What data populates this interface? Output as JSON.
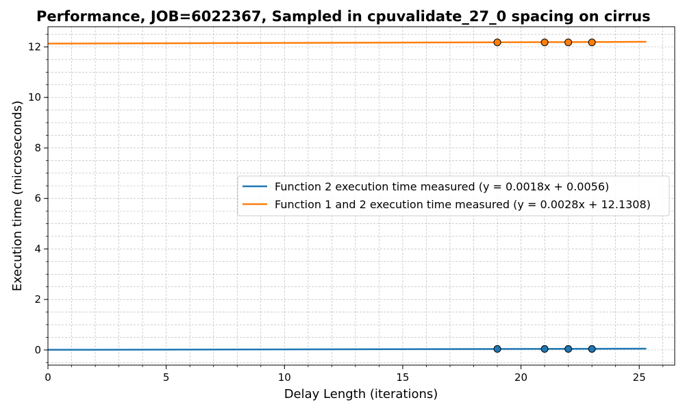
{
  "chart_data": {
    "type": "scatter",
    "title": "Performance, JOB=6022367, Sampled in cpuvalidate_27_0 spacing on cirrus",
    "xlabel": "Delay Length (iterations)",
    "ylabel": "Execution time (microseconds)",
    "xlim": [
      0,
      26.5
    ],
    "ylim": [
      -0.6,
      12.8
    ],
    "x_ticks": [
      0,
      5,
      10,
      15,
      20,
      25
    ],
    "y_ticks": [
      0,
      2,
      4,
      6,
      8,
      10,
      12
    ],
    "grid": true,
    "legend_position": "center-right",
    "series": [
      {
        "name": "Function 2 execution time measured (y = 0.0018x + 0.0056)",
        "color": "#1f77b4",
        "fit": {
          "slope": 0.0018,
          "intercept": 0.0056,
          "x_range": [
            0,
            25.3
          ]
        },
        "points": {
          "x": [
            19,
            21,
            22,
            23
          ],
          "y": [
            0.04,
            0.04,
            0.04,
            0.04
          ]
        }
      },
      {
        "name": "Function 1 and 2 execution time measured (y = 0.0028x + 12.1308)",
        "color": "#ff7f0e",
        "fit": {
          "slope": 0.0028,
          "intercept": 12.1308,
          "x_range": [
            0,
            25.3
          ]
        },
        "points": {
          "x": [
            19,
            21,
            22,
            23
          ],
          "y": [
            12.18,
            12.18,
            12.18,
            12.18
          ]
        }
      }
    ]
  }
}
